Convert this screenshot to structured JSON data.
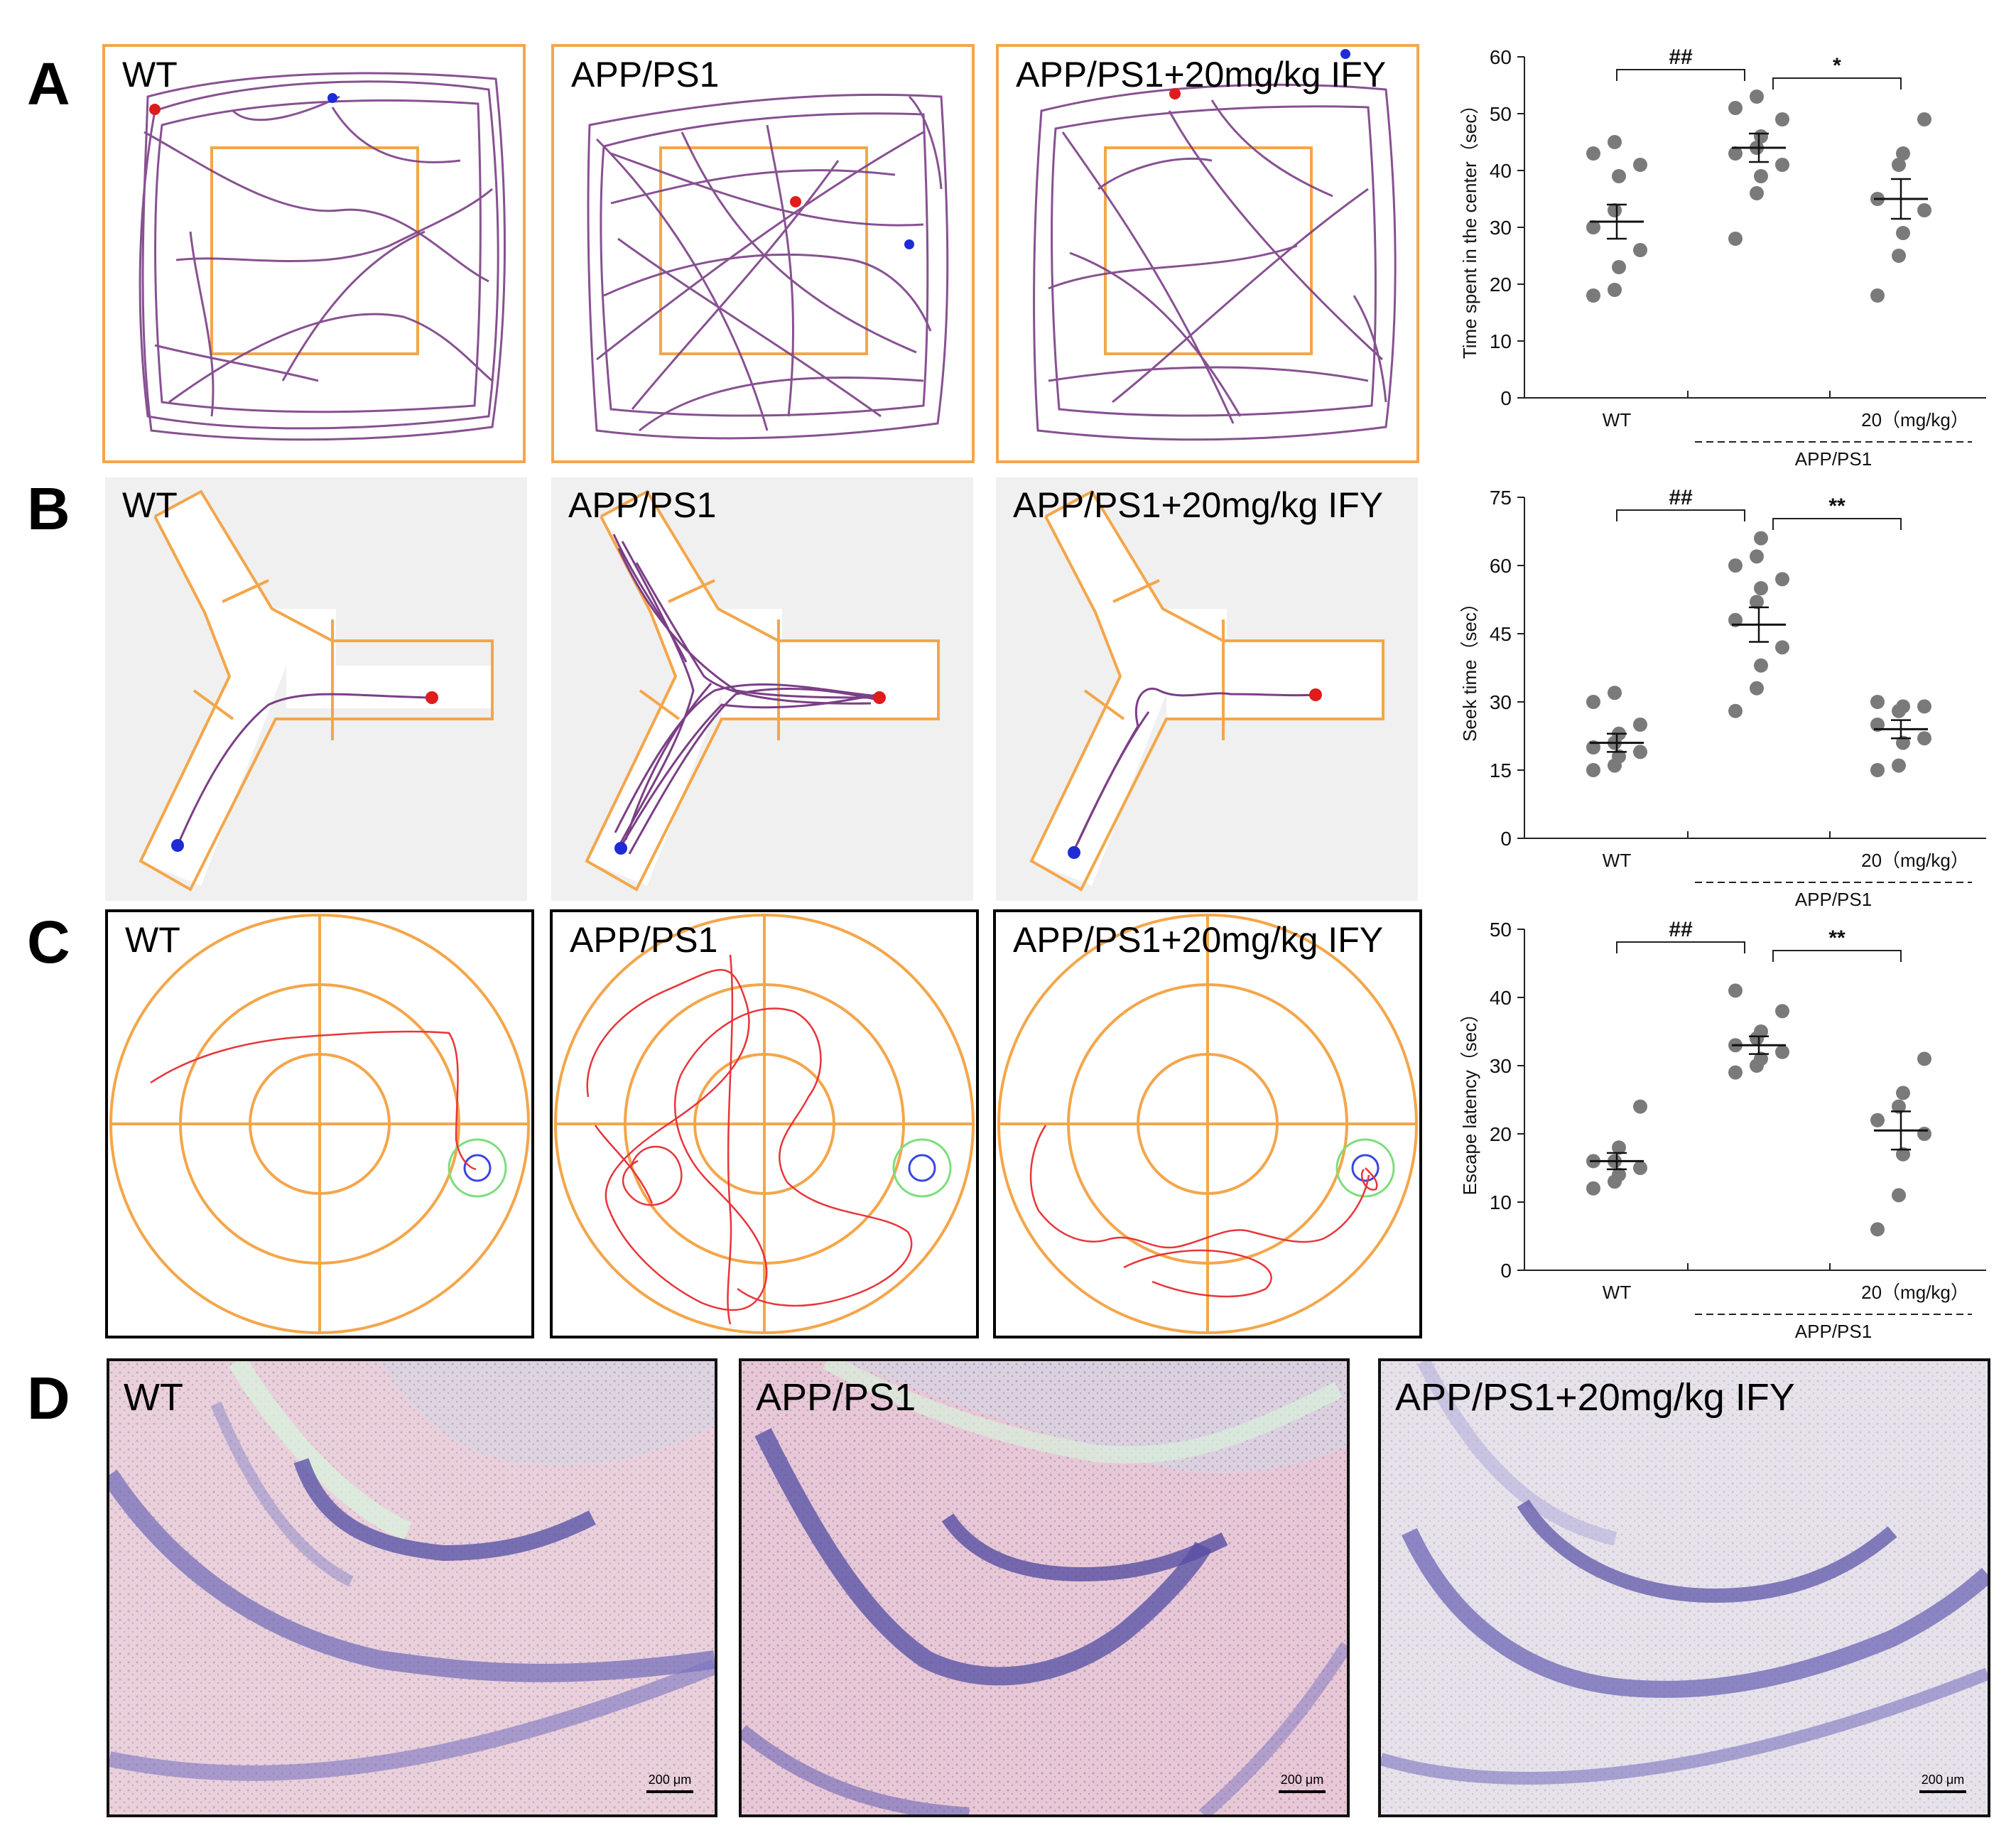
{
  "panels": {
    "A": {
      "letter": "A",
      "labels": [
        "WT",
        "APP/PS1",
        "APP/PS1+20mg/kg IFY"
      ]
    },
    "B": {
      "letter": "B",
      "labels": [
        "WT",
        "APP/PS1",
        "APP/PS1+20mg/kg IFY"
      ]
    },
    "C": {
      "letter": "C",
      "labels": [
        "WT",
        "APP/PS1",
        "APP/PS1+20mg/kg IFY"
      ]
    },
    "D": {
      "letter": "D",
      "labels": [
        "WT",
        "APP/PS1",
        "APP/PS1+20mg/kg IFY"
      ],
      "scale_bar": "200 μm"
    }
  },
  "colors": {
    "arena": "#f4a64a",
    "path_purple": "#7b3f86",
    "path_red": "#e8353a",
    "start_blue": "#1f2bd6",
    "end_red": "#e01b1b",
    "platform_green": "#7dde7d",
    "platform_blue": "#3b46e0",
    "dot": "#7a7a7a"
  },
  "chart_data": [
    {
      "type": "scatter",
      "panel": "A",
      "title": "",
      "ylabel": "Time spent in the center（sec）",
      "ylim": [
        0,
        60
      ],
      "yticks": [
        0,
        10,
        20,
        30,
        40,
        50,
        60
      ],
      "categories": [
        "WT",
        "",
        "20（mg/kg）"
      ],
      "group_label": "APP/PS1",
      "series": [
        {
          "name": "WT",
          "values": [
            18,
            19,
            23,
            26,
            30,
            33,
            39,
            41,
            43,
            45
          ],
          "mean": 31,
          "sem": 3
        },
        {
          "name": "APP/PS1",
          "values": [
            28,
            36,
            39,
            41,
            43,
            44,
            46,
            49,
            51,
            53
          ],
          "mean": 44,
          "sem": 2.5
        },
        {
          "name": "APP/PS1+20mg/kg IFY",
          "values": [
            18,
            25,
            29,
            33,
            35,
            41,
            43,
            49
          ],
          "mean": 35,
          "sem": 3.5
        }
      ],
      "annotations": [
        {
          "text": "##",
          "from": 0,
          "to": 1
        },
        {
          "text": "*",
          "from": 1,
          "to": 2
        }
      ]
    },
    {
      "type": "scatter",
      "panel": "B",
      "title": "",
      "ylabel": "Seek time（sec）",
      "ylim": [
        0,
        75
      ],
      "yticks": [
        0,
        15,
        30,
        45,
        60,
        75
      ],
      "categories": [
        "WT",
        "",
        "20（mg/kg）"
      ],
      "group_label": "APP/PS1",
      "series": [
        {
          "name": "WT",
          "values": [
            15,
            16,
            18,
            19,
            20,
            21,
            23,
            25,
            30,
            32
          ],
          "mean": 21,
          "sem": 2
        },
        {
          "name": "APP/PS1",
          "values": [
            28,
            33,
            38,
            42,
            48,
            52,
            55,
            57,
            60,
            62,
            66
          ],
          "mean": 47,
          "sem": 3.8
        },
        {
          "name": "APP/PS1+20mg/kg IFY",
          "values": [
            15,
            16,
            21,
            22,
            25,
            28,
            29,
            29,
            30
          ],
          "mean": 24,
          "sem": 2
        }
      ],
      "annotations": [
        {
          "text": "##",
          "from": 0,
          "to": 1
        },
        {
          "text": "**",
          "from": 1,
          "to": 2
        }
      ]
    },
    {
      "type": "scatter",
      "panel": "C",
      "title": "",
      "ylabel": "Escape latency（sec）",
      "ylim": [
        0,
        50
      ],
      "yticks": [
        0,
        10,
        20,
        30,
        40,
        50
      ],
      "categories": [
        "WT",
        "",
        "20（mg/kg）"
      ],
      "group_label": "APP/PS1",
      "series": [
        {
          "name": "WT",
          "values": [
            12,
            13,
            14,
            15,
            16,
            16,
            18,
            24
          ],
          "mean": 16,
          "sem": 1.2
        },
        {
          "name": "APP/PS1",
          "values": [
            29,
            30,
            31,
            32,
            33,
            34,
            35,
            38,
            41
          ],
          "mean": 33,
          "sem": 1.3
        },
        {
          "name": "APP/PS1+20mg/kg IFY",
          "values": [
            6,
            11,
            17,
            20,
            22,
            24,
            26,
            31
          ],
          "mean": 20.5,
          "sem": 2.8
        }
      ],
      "annotations": [
        {
          "text": "##",
          "from": 0,
          "to": 1
        },
        {
          "text": "**",
          "from": 1,
          "to": 2
        }
      ]
    }
  ]
}
